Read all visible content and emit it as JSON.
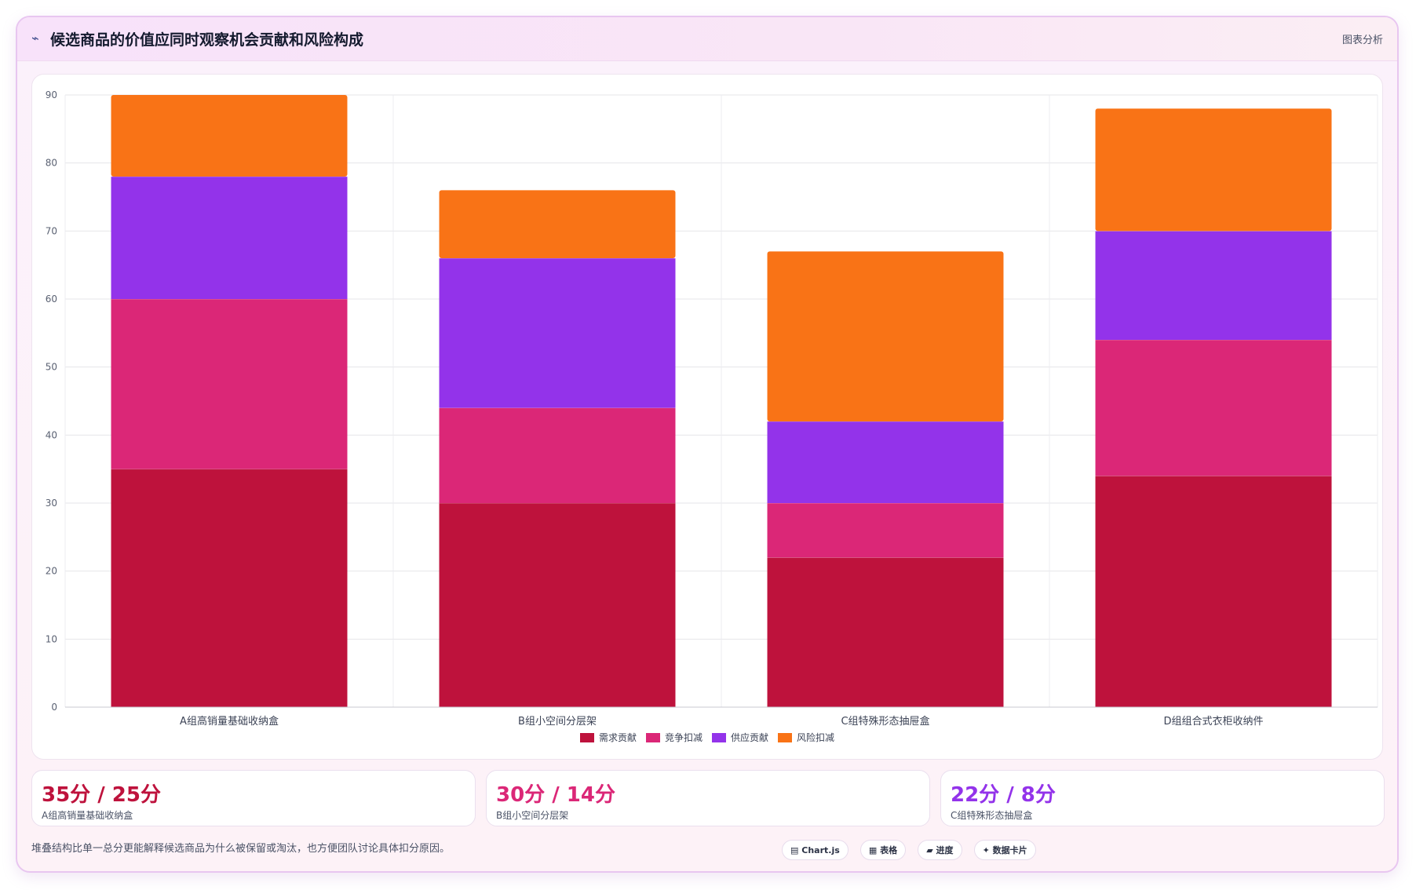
{
  "header": {
    "icon": "trend-line-icon",
    "title": "候选商品的价值应同时观察机会贡献和风险构成",
    "action_label": "图表分析"
  },
  "chart_data": {
    "type": "bar",
    "stacked": true,
    "categories": [
      "A组高销量基础收纳盒",
      "B组小空间分层架",
      "C组特殊形态抽屉盒",
      "D组组合式衣柜收纳件"
    ],
    "series": [
      {
        "name": "需求贡献",
        "color": "#be123c",
        "values": [
          35,
          30,
          22,
          34
        ]
      },
      {
        "name": "竞争扣减",
        "color": "#db2777",
        "values": [
          25,
          14,
          8,
          20
        ]
      },
      {
        "name": "供应贡献",
        "color": "#9333ea",
        "values": [
          18,
          22,
          12,
          16
        ]
      },
      {
        "name": "风险扣减",
        "color": "#f97316",
        "values": [
          12,
          10,
          25,
          18
        ]
      }
    ],
    "ylim": [
      0,
      90
    ],
    "yticks": [
      0,
      10,
      20,
      30,
      40,
      50,
      60,
      70,
      80,
      90
    ],
    "grid": true,
    "legend_position": "bottom"
  },
  "stats": [
    {
      "value": "35分 / 25分",
      "label": "A组高销量基础收纳盒",
      "color": "#be123c"
    },
    {
      "value": "30分 / 14分",
      "label": "B组小空间分层架",
      "color": "#db2777"
    },
    {
      "value": "22分 / 8分",
      "label": "C组特殊形态抽屉盒",
      "color": "#9333ea"
    }
  ],
  "footer": {
    "note": "堆叠结构比单一总分更能解释候选商品为什么被保留或淘汰，也方便团队讨论具体扣分原因。",
    "tags": [
      {
        "icon": "chart-icon",
        "glyph": "▤",
        "label": "Chart.js"
      },
      {
        "icon": "table-icon",
        "glyph": "▦",
        "label": "表格"
      },
      {
        "icon": "progress-icon",
        "glyph": "▰",
        "label": "进度"
      },
      {
        "icon": "sparkle-icon",
        "glyph": "✦",
        "label": "数据卡片"
      }
    ]
  }
}
